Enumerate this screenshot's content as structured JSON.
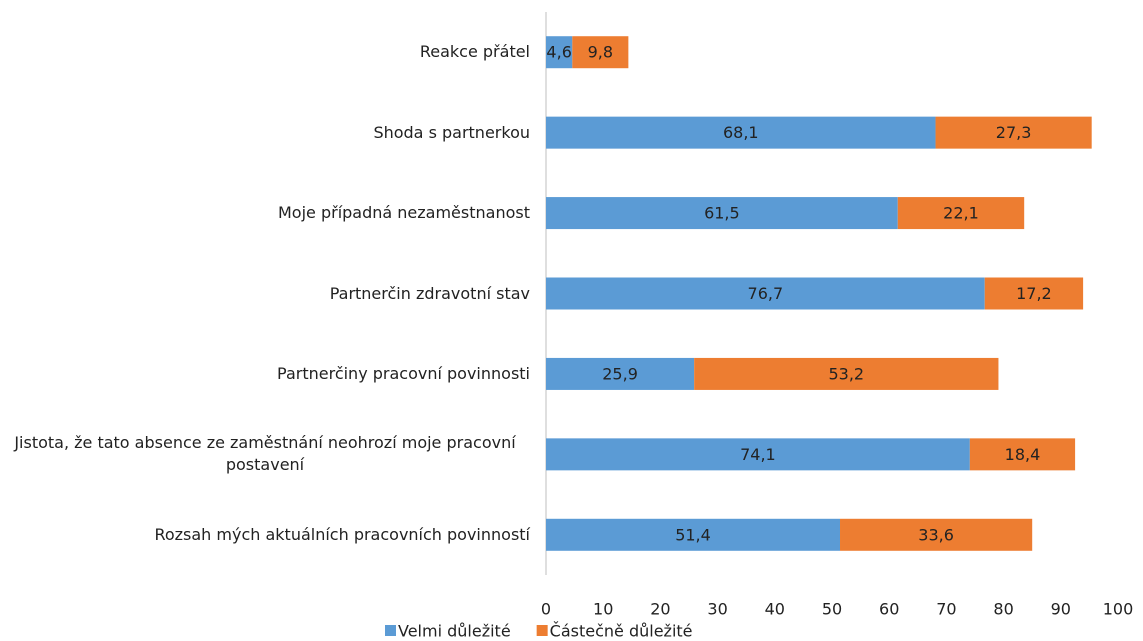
{
  "chart_data": {
    "type": "stacked_bar_horizontal",
    "categories": [
      "Reakce přátel",
      "Shoda s partnerkou",
      "Moje případná nezaměstnanost",
      "Partnerčin zdravotní stav",
      "Partnerčiny pracovní povinnosti",
      "Jistota, že tato absence ze zaměstnání neohrozí moje pracovní postavení",
      "Rozsah mých aktuálních pracovních povinností"
    ],
    "series": [
      {
        "name": "Velmi důležité",
        "color": "#5b9bd5",
        "values": [
          4.6,
          68.1,
          61.5,
          76.7,
          25.9,
          74.1,
          51.4
        ],
        "value_labels": [
          "4,6",
          "68,1",
          "61,5",
          "76,7",
          "25,9",
          "74,1",
          "51,4"
        ]
      },
      {
        "name": "Částečně důležité",
        "color": "#ed7d31",
        "values": [
          9.8,
          27.3,
          22.1,
          17.2,
          53.2,
          18.4,
          33.6
        ],
        "value_labels": [
          "9,8",
          "27,3",
          "22,1",
          "17,2",
          "53,2",
          "18,4",
          "33,6"
        ]
      }
    ],
    "xlim": [
      0,
      100
    ],
    "xticks": [
      0,
      10,
      20,
      30,
      40,
      50,
      60,
      70,
      80,
      90,
      100
    ],
    "legend": "bottom"
  }
}
